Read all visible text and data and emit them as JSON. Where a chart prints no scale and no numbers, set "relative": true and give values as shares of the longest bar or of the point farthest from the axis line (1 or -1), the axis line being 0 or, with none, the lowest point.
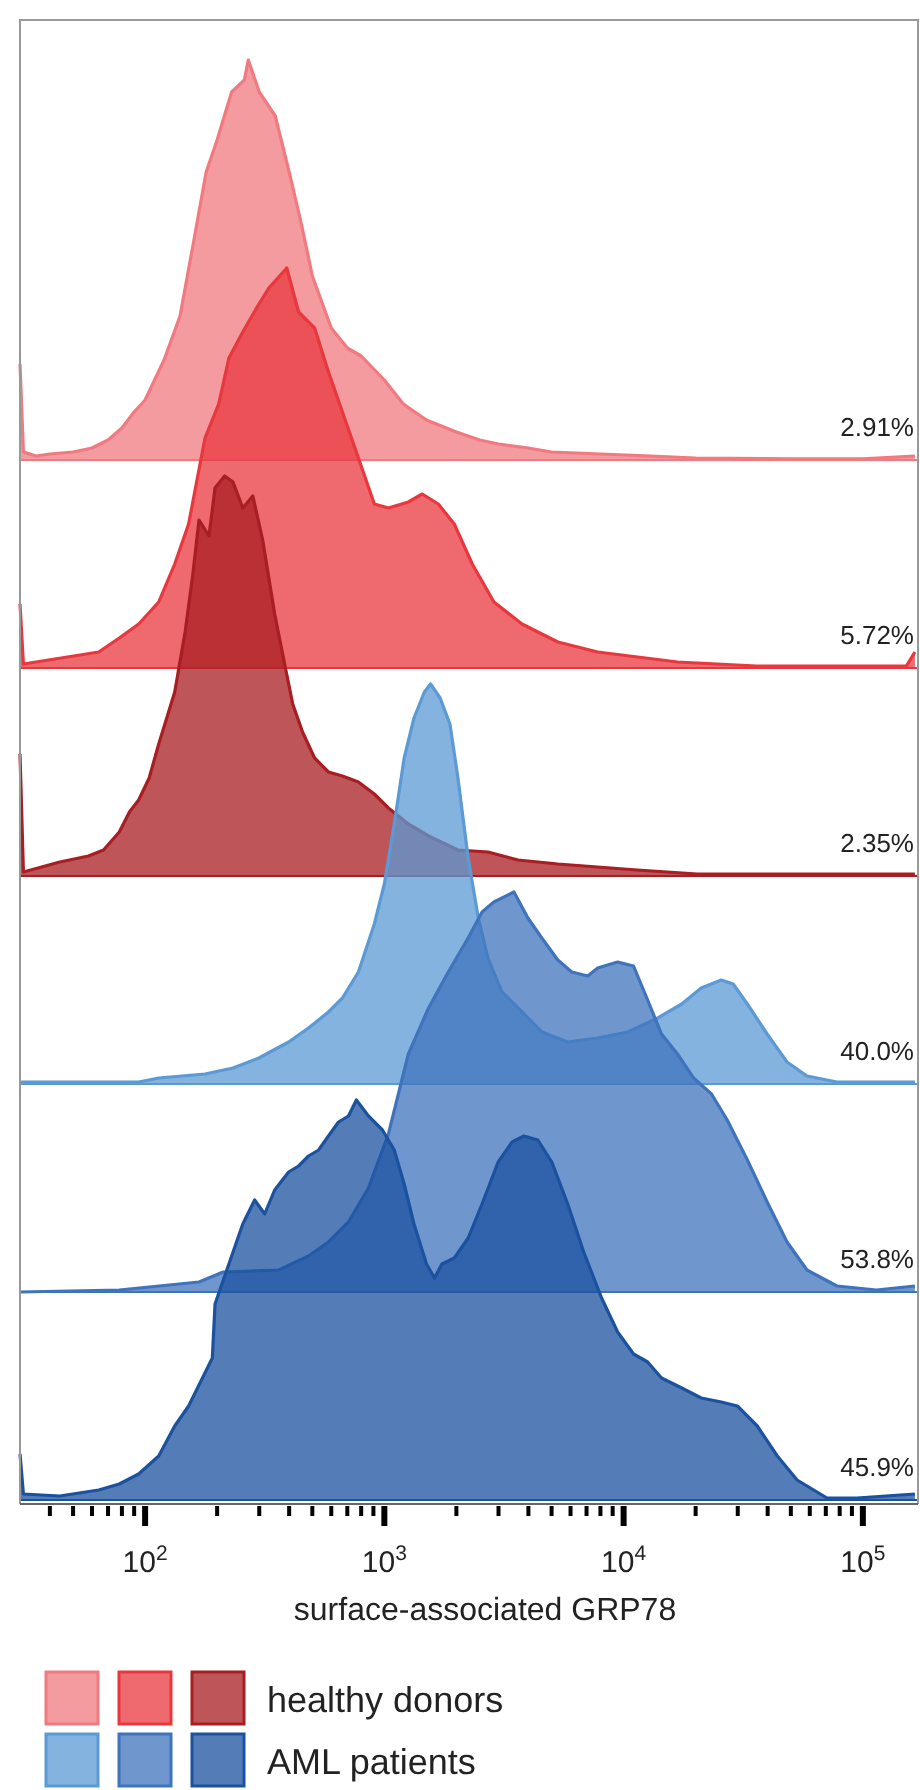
{
  "chart_data": [
    {
      "type": "area",
      "relative": true,
      "log": "x",
      "xlim": [
        30,
        170000
      ],
      "tick_labels": false,
      "annotations": [
        "2.91%"
      ],
      "x": [
        30,
        31,
        35,
        40,
        50,
        60,
        70,
        80,
        90,
        100,
        120,
        140,
        160,
        180,
        200,
        230,
        260,
        270,
        300,
        350,
        400,
        450,
        500,
        600,
        700,
        800,
        1000,
        1200,
        1500,
        2000,
        2500,
        3000,
        4000,
        5000,
        8000,
        13000,
        20000,
        50000,
        100000,
        165000
      ],
      "series": [
        {
          "color": "#f07a80",
          "values": [
            0.24,
            0.02,
            0.01,
            0.015,
            0.02,
            0.03,
            0.05,
            0.08,
            0.12,
            0.15,
            0.25,
            0.36,
            0.55,
            0.72,
            0.8,
            0.92,
            0.95,
            1.0,
            0.92,
            0.86,
            0.72,
            0.59,
            0.46,
            0.33,
            0.28,
            0.26,
            0.2,
            0.14,
            0.1,
            0.07,
            0.05,
            0.04,
            0.03,
            0.02,
            0.015,
            0.01,
            0.005,
            0.003,
            0.003,
            0.01
          ]
        }
      ]
    },
    {
      "type": "area",
      "relative": true,
      "log": "x",
      "xlim": [
        30,
        170000
      ],
      "tick_labels": false,
      "annotations": [
        "5.72%"
      ],
      "x": [
        30,
        31,
        64,
        78,
        94,
        114,
        133,
        152,
        178,
        203,
        224,
        256,
        299,
        329,
        391,
        438,
        511,
        584,
        668,
        779,
        908,
        1040,
        1260,
        1440,
        1680,
        1960,
        2330,
        2870,
        3760,
        5310,
        7790,
        16800,
        36000,
        152000,
        165000
      ],
      "series": [
        {
          "color": "#e8383d",
          "values": [
            0.16,
            0.01,
            0.04,
            0.075,
            0.11,
            0.165,
            0.26,
            0.36,
            0.575,
            0.66,
            0.775,
            0.84,
            0.91,
            0.95,
            1.0,
            0.89,
            0.85,
            0.74,
            0.64,
            0.525,
            0.41,
            0.4,
            0.415,
            0.435,
            0.41,
            0.36,
            0.26,
            0.165,
            0.11,
            0.065,
            0.04,
            0.015,
            0.005,
            0.005,
            0.04
          ]
        }
      ]
    },
    {
      "type": "area",
      "relative": true,
      "log": "x",
      "xlim": [
        30,
        170000
      ],
      "tick_labels": false,
      "legend": "bottom",
      "annotations": [
        "2.35%"
      ],
      "x": [
        30,
        31,
        44,
        58,
        67,
        78,
        86,
        94,
        104,
        114,
        121,
        133,
        147,
        158,
        168,
        185,
        196,
        215,
        233,
        256,
        282,
        310,
        348,
        383,
        414,
        455,
        511,
        584,
        668,
        779,
        908,
        1040,
        1260,
        1530,
        2030,
        2710,
        3620,
        5310,
        11400,
        20300,
        152000,
        165000
      ],
      "series": [
        {
          "name": "healthy donors",
          "color": "#a81e22",
          "values": [
            0.305,
            0.01,
            0.035,
            0.05,
            0.065,
            0.11,
            0.16,
            0.19,
            0.245,
            0.33,
            0.38,
            0.46,
            0.61,
            0.75,
            0.89,
            0.85,
            0.97,
            1.0,
            0.985,
            0.92,
            0.95,
            0.84,
            0.655,
            0.53,
            0.43,
            0.36,
            0.295,
            0.26,
            0.25,
            0.235,
            0.205,
            0.17,
            0.13,
            0.1,
            0.065,
            0.06,
            0.04,
            0.03,
            0.015,
            0.005,
            0.005,
            0.005
          ]
        }
      ]
    },
    {
      "type": "area",
      "relative": true,
      "log": "x",
      "xlim": [
        30,
        170000
      ],
      "tick_labels": false,
      "annotations": [
        "40.0%"
      ],
      "x": [
        30,
        94,
        114,
        178,
        233,
        299,
        398,
        482,
        584,
        668,
        779,
        908,
        1000,
        1100,
        1210,
        1330,
        1470,
        1560,
        1710,
        1880,
        2030,
        2240,
        2470,
        2710,
        3100,
        3760,
        4550,
        5840,
        7790,
        10400,
        13900,
        17500,
        21100,
        25600,
        28700,
        32900,
        39800,
        48200,
        58400,
        77900,
        165000
      ],
      "series": [
        {
          "color": "#5b9ad5",
          "values": [
            0.005,
            0.005,
            0.015,
            0.025,
            0.04,
            0.065,
            0.105,
            0.14,
            0.18,
            0.215,
            0.28,
            0.4,
            0.5,
            0.65,
            0.815,
            0.915,
            0.98,
            1.0,
            0.965,
            0.9,
            0.765,
            0.565,
            0.415,
            0.315,
            0.23,
            0.18,
            0.13,
            0.105,
            0.115,
            0.13,
            0.165,
            0.2,
            0.24,
            0.26,
            0.25,
            0.2,
            0.125,
            0.055,
            0.02,
            0.005,
            0.005
          ]
        }
      ]
    },
    {
      "type": "area",
      "relative": true,
      "log": "x",
      "xlim": [
        30,
        170000
      ],
      "tick_labels": false,
      "annotations": [
        "53.8%"
      ],
      "x": [
        30,
        78,
        168,
        212,
        362,
        482,
        584,
        708,
        858,
        1040,
        1260,
        1530,
        1850,
        2240,
        2560,
        2870,
        3480,
        3980,
        4550,
        5310,
        6070,
        7080,
        7790,
        9440,
        11000,
        12600,
        14400,
        16800,
        19600,
        23300,
        27100,
        32900,
        39800,
        48200,
        58400,
        77900,
        114000,
        165000
      ],
      "series": [
        {
          "color": "#3f74bd",
          "values": [
            0,
            0.005,
            0.025,
            0.05,
            0.055,
            0.09,
            0.125,
            0.175,
            0.26,
            0.395,
            0.595,
            0.71,
            0.8,
            0.885,
            0.95,
            0.975,
            1.0,
            0.935,
            0.885,
            0.83,
            0.8,
            0.79,
            0.81,
            0.825,
            0.815,
            0.73,
            0.645,
            0.595,
            0.535,
            0.495,
            0.43,
            0.33,
            0.225,
            0.125,
            0.055,
            0.015,
            0.005,
            0.015
          ]
        }
      ]
    },
    {
      "type": "area",
      "relative": true,
      "log": "x",
      "xlim": [
        30,
        170000
      ],
      "tick_labels": "x",
      "legend": "bottom",
      "xlabel": "surface-associated GRP78",
      "annotations": [
        "45.9%"
      ],
      "xticks": [
        {
          "value": 40,
          "label": null
        },
        {
          "value": 50,
          "label": null
        },
        {
          "value": 60,
          "label": null
        },
        {
          "value": 70,
          "label": null
        },
        {
          "value": 80,
          "label": null
        },
        {
          "value": 90,
          "label": null
        },
        {
          "value": 100,
          "label": "10$^{2}$"
        },
        {
          "value": 200,
          "label": null
        },
        {
          "value": 300,
          "label": null
        },
        {
          "value": 400,
          "label": null
        },
        {
          "value": 500,
          "label": null
        },
        {
          "value": 600,
          "label": null
        },
        {
          "value": 700,
          "label": null
        },
        {
          "value": 800,
          "label": null
        },
        {
          "value": 900,
          "label": null
        },
        {
          "value": 1000,
          "label": "10$^{3}$"
        },
        {
          "value": 2000,
          "label": null
        },
        {
          "value": 3000,
          "label": null
        },
        {
          "value": 4000,
          "label": null
        },
        {
          "value": 5000,
          "label": null
        },
        {
          "value": 6000,
          "label": null
        },
        {
          "value": 7000,
          "label": null
        },
        {
          "value": 8000,
          "label": null
        },
        {
          "value": 9000,
          "label": null
        },
        {
          "value": 10000,
          "label": "10$^{4}$"
        },
        {
          "value": 20000,
          "label": null
        },
        {
          "value": 30000,
          "label": null
        },
        {
          "value": 40000,
          "label": null
        },
        {
          "value": 50000,
          "label": null
        },
        {
          "value": 60000,
          "label": null
        },
        {
          "value": 70000,
          "label": null
        },
        {
          "value": 80000,
          "label": null
        },
        {
          "value": 90000,
          "label": null
        },
        {
          "value": 100000,
          "label": "10$^{5}$"
        }
      ],
      "x": [
        30,
        31,
        44,
        64,
        78,
        94,
        114,
        133,
        152,
        191,
        196,
        224,
        256,
        287,
        316,
        348,
        398,
        438,
        482,
        531,
        584,
        643,
        708,
        764,
        858,
        982,
        1100,
        1210,
        1330,
        1500,
        1620,
        1740,
        1960,
        2240,
        2560,
        2990,
        3420,
        3830,
        4380,
        5010,
        5840,
        6810,
        8090,
        9440,
        11000,
        12600,
        14400,
        17500,
        21100,
        25600,
        29900,
        36200,
        43900,
        53100,
        70800,
        94400,
        165000
      ],
      "series": [
        {
          "name": "AML patients",
          "color": "#1b52a0",
          "values": [
            0.115,
            0.015,
            0.01,
            0.025,
            0.04,
            0.065,
            0.11,
            0.185,
            0.235,
            0.355,
            0.49,
            0.59,
            0.69,
            0.75,
            0.715,
            0.775,
            0.82,
            0.835,
            0.86,
            0.875,
            0.91,
            0.945,
            0.96,
            1.0,
            0.96,
            0.925,
            0.875,
            0.79,
            0.69,
            0.59,
            0.555,
            0.59,
            0.605,
            0.655,
            0.74,
            0.845,
            0.895,
            0.91,
            0.9,
            0.845,
            0.74,
            0.62,
            0.505,
            0.42,
            0.365,
            0.345,
            0.305,
            0.28,
            0.255,
            0.245,
            0.235,
            0.185,
            0.11,
            0.05,
            0.005,
            0.005,
            0.015
          ]
        }
      ]
    }
  ]
}
